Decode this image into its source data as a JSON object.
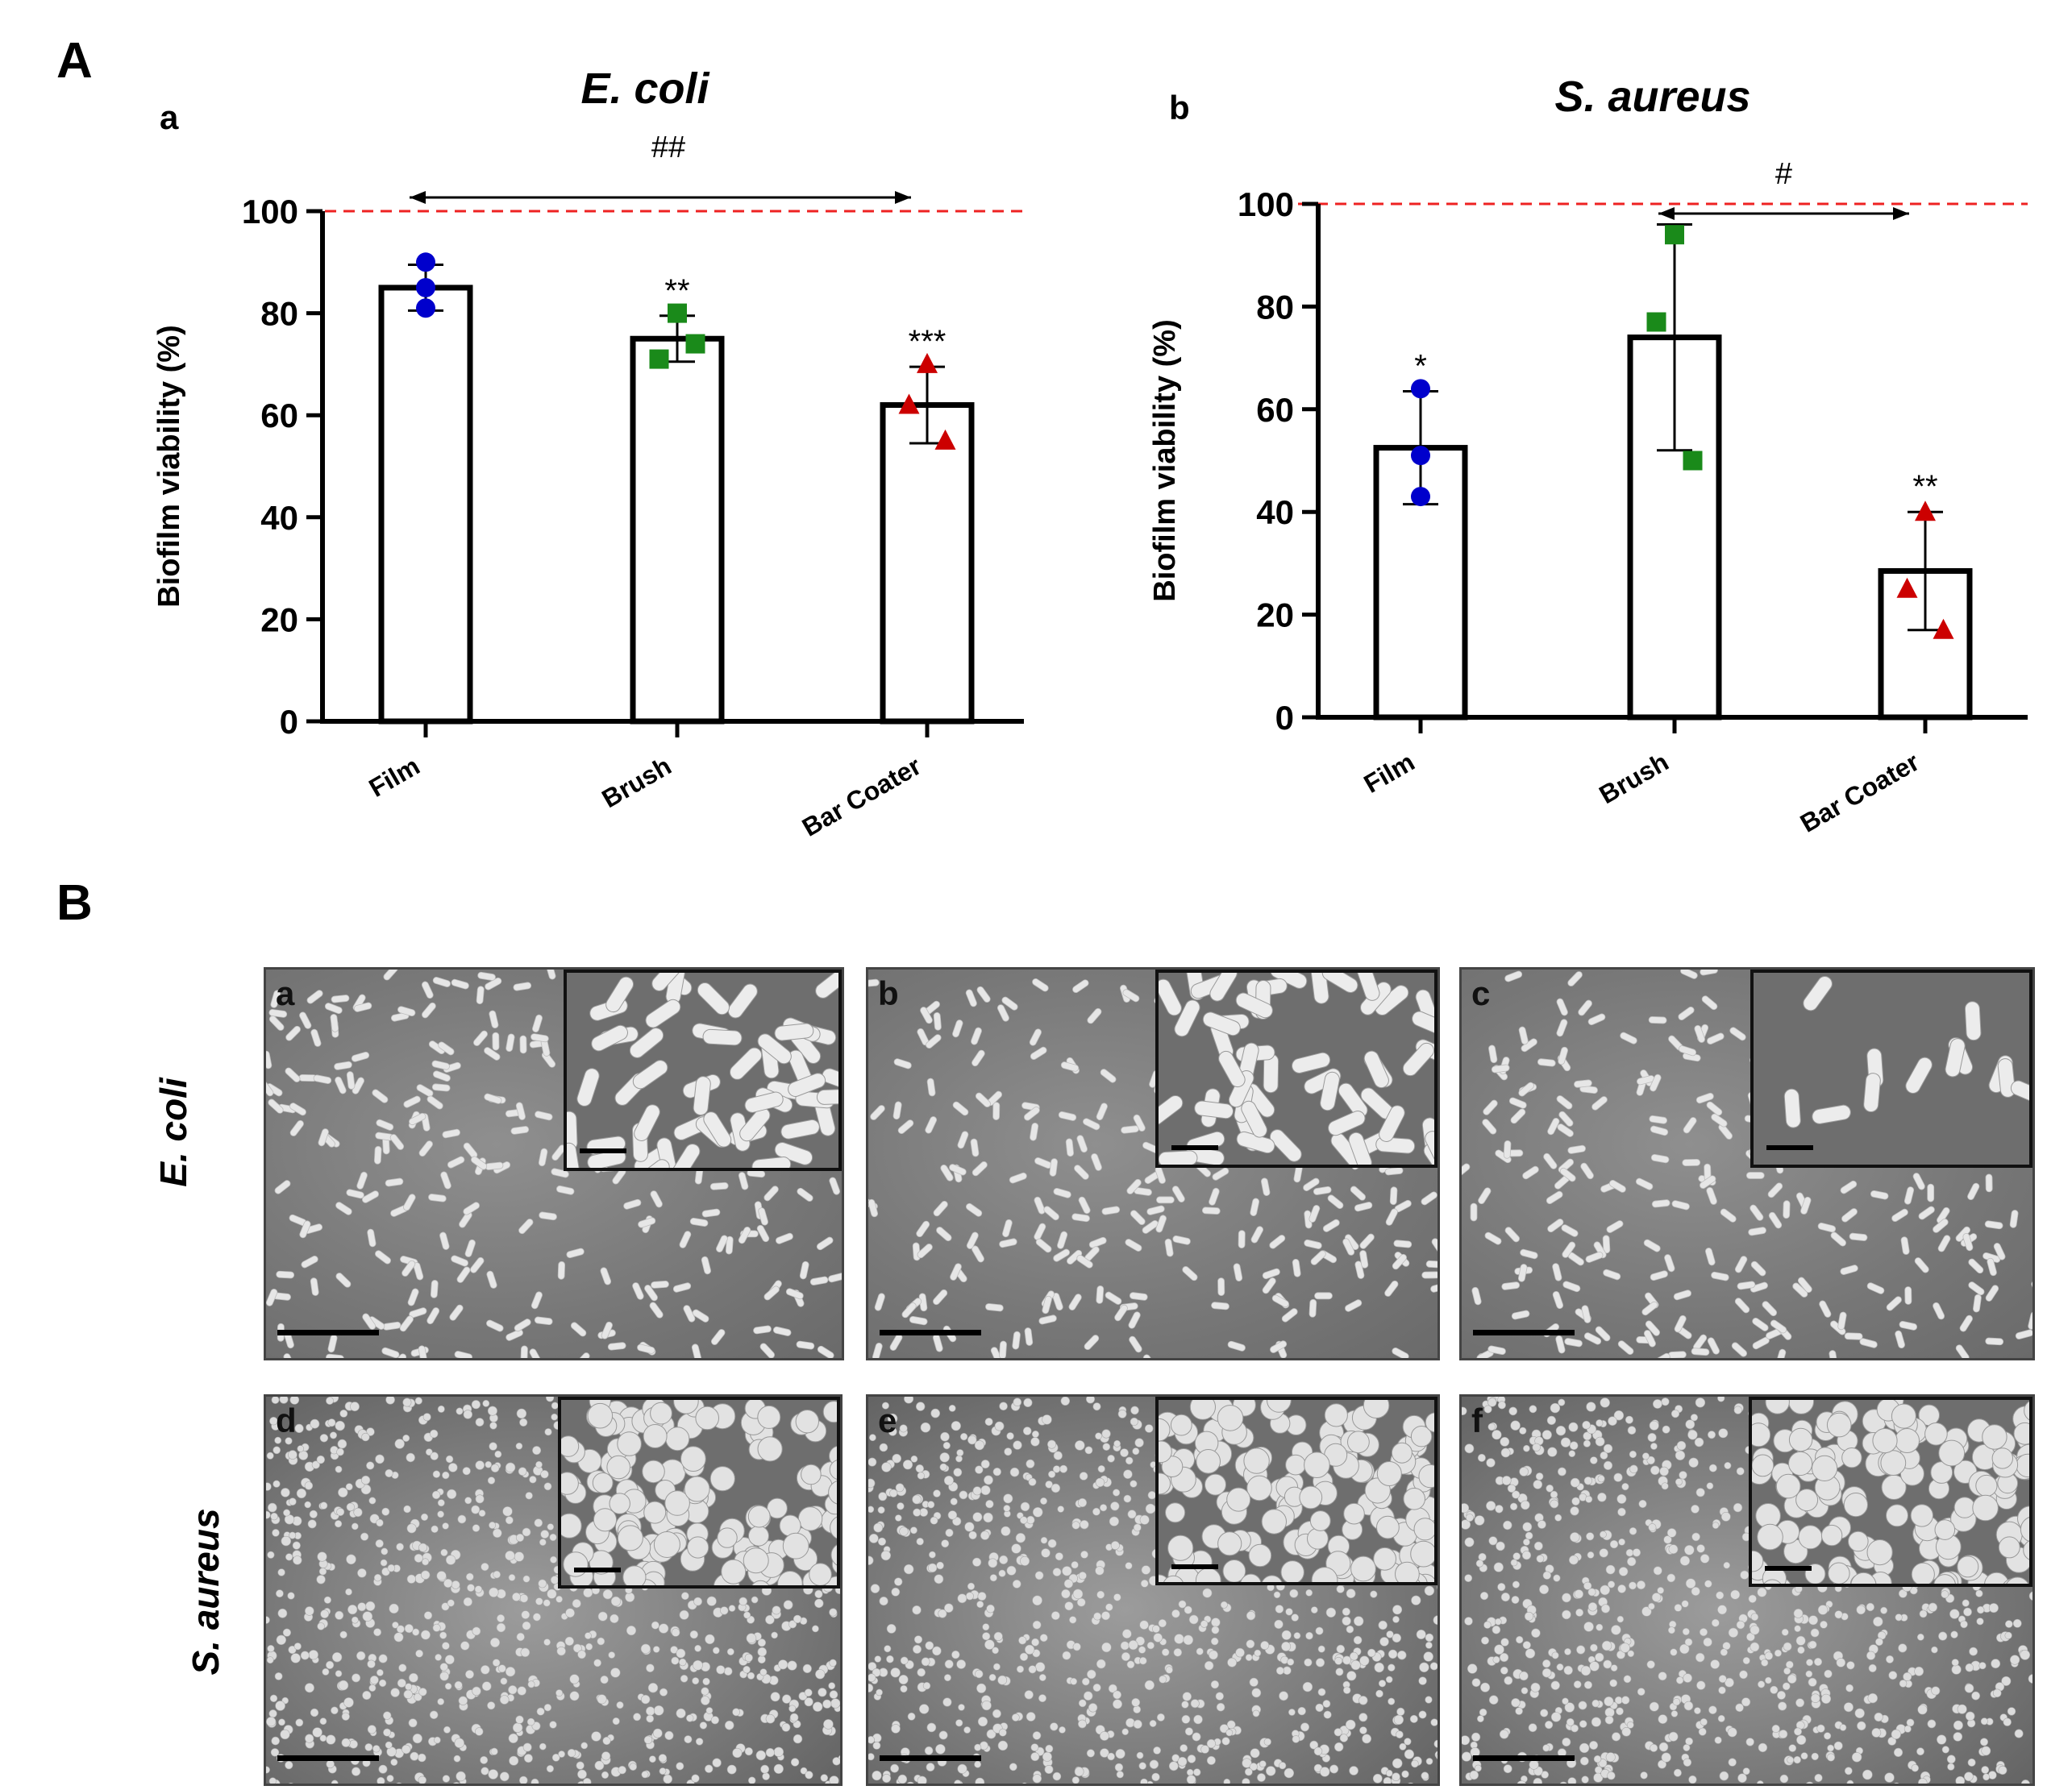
{
  "panel_labels": {
    "A": "A",
    "B": "B"
  },
  "chart_data": [
    {
      "type": "bar",
      "panel_label": "a",
      "title": "E. coli",
      "categories": [
        "Film",
        "Brush",
        "Bar Coater"
      ],
      "values": [
        85,
        75,
        62
      ],
      "error": [
        4.5,
        4.5,
        7.5
      ],
      "points": [
        [
          90,
          85,
          81
        ],
        [
          80,
          71,
          74
        ],
        [
          70,
          62,
          55
        ]
      ],
      "significance": [
        "",
        "**",
        "***"
      ],
      "comparisons": [
        {
          "from": "Film",
          "to": "Bar Coater",
          "label": "##"
        }
      ],
      "reference_line": 100,
      "ylabel": "Biofilm viability (%)",
      "ylim": [
        0,
        100
      ],
      "yticks": [
        0,
        20,
        40,
        60,
        80,
        100
      ],
      "point_markers": [
        "circle",
        "square",
        "triangle"
      ],
      "point_colors": [
        "#0000cc",
        "#1a8a1a",
        "#cc0000"
      ]
    },
    {
      "type": "bar",
      "panel_label": "b",
      "title": "S. aureus",
      "categories": [
        "Film",
        "Brush",
        "Bar Coater"
      ],
      "values": [
        52.5,
        74,
        28.5
      ],
      "error": [
        11,
        22,
        11.5
      ],
      "points": [
        [
          64,
          51,
          43
        ],
        [
          94,
          77,
          50
        ],
        [
          40,
          25,
          17
        ]
      ],
      "significance": [
        "*",
        "",
        "**"
      ],
      "comparisons": [
        {
          "from": "Brush",
          "to": "Bar Coater",
          "label": "#"
        }
      ],
      "reference_line": 100,
      "ylabel": "Biofilm viability (%)",
      "ylim": [
        0,
        100
      ],
      "yticks": [
        0,
        20,
        40,
        60,
        80,
        100
      ],
      "point_markers": [
        "circle",
        "square",
        "triangle"
      ],
      "point_colors": [
        "#0000cc",
        "#1a8a1a",
        "#cc0000"
      ]
    }
  ],
  "sem": {
    "rows": [
      "E. coli",
      "S. aureus"
    ],
    "panels": [
      {
        "label": "a",
        "organism": "rod"
      },
      {
        "label": "b",
        "organism": "rod"
      },
      {
        "label": "c",
        "organism": "rod"
      },
      {
        "label": "d",
        "organism": "coccus"
      },
      {
        "label": "e",
        "organism": "coccus"
      },
      {
        "label": "f",
        "organism": "coccus"
      }
    ]
  }
}
